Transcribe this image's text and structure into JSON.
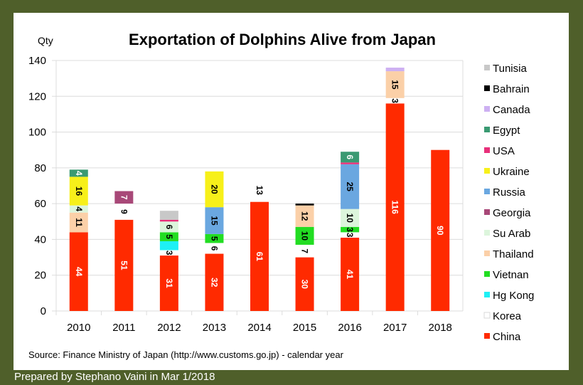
{
  "chart_data": {
    "type": "bar",
    "stacked": true,
    "title": "Exportation of Dolphins Alive from Japan",
    "xlabel": "",
    "ylabel": "Qty",
    "ylim": [
      0,
      140
    ],
    "yticks": [
      0,
      20,
      40,
      60,
      80,
      100,
      120,
      140
    ],
    "grid": true,
    "legend_position": "right",
    "categories": [
      "2010",
      "2011",
      "2012",
      "2013",
      "2014",
      "2015",
      "2016",
      "2017",
      "2018"
    ],
    "series": [
      {
        "name": "China",
        "color": "#ff2a00",
        "label_color": "#ffffff",
        "values": [
          44,
          51,
          31,
          32,
          61,
          30,
          41,
          116,
          90
        ],
        "labeled": [
          true,
          true,
          true,
          true,
          true,
          true,
          true,
          true,
          true
        ]
      },
      {
        "name": "Korea",
        "color": "#ffffff",
        "label_color": "#000000",
        "values": [
          0,
          9,
          3,
          6,
          13,
          7,
          3,
          3,
          0
        ],
        "labeled": [
          false,
          true,
          true,
          true,
          true,
          true,
          true,
          true,
          false
        ]
      },
      {
        "name": "Hg Kong",
        "color": "#1ef0f5",
        "label_color": "#000000",
        "values": [
          0,
          0,
          5,
          0,
          0,
          0,
          0,
          0,
          0
        ],
        "labeled": [
          false,
          false,
          false,
          false,
          false,
          false,
          false,
          false,
          false
        ]
      },
      {
        "name": "Vietnan",
        "color": "#22dd22",
        "label_color": "#000000",
        "values": [
          0,
          0,
          5,
          5,
          0,
          10,
          3,
          0,
          0
        ],
        "labeled": [
          false,
          false,
          true,
          true,
          false,
          true,
          true,
          false,
          false
        ]
      },
      {
        "name": "Thailand",
        "color": "#fbd0a8",
        "label_color": "#000000",
        "values": [
          11,
          0,
          0,
          0,
          0,
          12,
          0,
          15,
          0
        ],
        "labeled": [
          true,
          false,
          false,
          false,
          false,
          true,
          false,
          true,
          false
        ]
      },
      {
        "name": "Su Arab",
        "color": "#dcf5dc",
        "label_color": "#000000",
        "values": [
          4,
          0,
          6,
          0,
          0,
          0,
          10,
          0,
          0
        ],
        "labeled": [
          true,
          false,
          true,
          false,
          false,
          false,
          true,
          false,
          false
        ]
      },
      {
        "name": "Georgia",
        "color": "#a84878",
        "label_color": "#ffffff",
        "values": [
          0,
          7,
          0,
          0,
          0,
          0,
          0,
          0,
          0
        ],
        "labeled": [
          false,
          true,
          false,
          false,
          false,
          false,
          false,
          false,
          false
        ]
      },
      {
        "name": "Russia",
        "color": "#6aa7e0",
        "label_color": "#000000",
        "values": [
          0,
          0,
          0,
          15,
          0,
          0,
          25,
          0,
          0
        ],
        "labeled": [
          false,
          false,
          false,
          true,
          false,
          false,
          true,
          false,
          false
        ]
      },
      {
        "name": "Ukraine",
        "color": "#f7f01a",
        "label_color": "#000000",
        "values": [
          16,
          0,
          0,
          20,
          0,
          0,
          0,
          0,
          0
        ],
        "labeled": [
          true,
          false,
          false,
          true,
          false,
          false,
          false,
          false,
          false
        ]
      },
      {
        "name": "USA",
        "color": "#e8307a",
        "label_color": "#000000",
        "values": [
          0,
          0,
          1,
          0,
          0,
          0,
          1,
          0,
          0
        ],
        "labeled": [
          false,
          false,
          false,
          false,
          false,
          false,
          false,
          false,
          false
        ]
      },
      {
        "name": "Egypt",
        "color": "#3a9a72",
        "label_color": "#ffffff",
        "values": [
          4,
          0,
          0,
          0,
          0,
          0,
          6,
          0,
          0
        ],
        "labeled": [
          true,
          false,
          false,
          false,
          false,
          false,
          true,
          false,
          false
        ]
      },
      {
        "name": "Canada",
        "color": "#cdb0f2",
        "label_color": "#000000",
        "values": [
          0,
          0,
          0,
          0,
          0,
          0,
          0,
          2,
          0
        ],
        "labeled": [
          false,
          false,
          false,
          false,
          false,
          false,
          false,
          false,
          false
        ]
      },
      {
        "name": "Bahrain",
        "color": "#000000",
        "label_color": "#ffffff",
        "values": [
          0,
          0,
          0,
          0,
          0,
          1,
          0,
          0,
          0
        ],
        "labeled": [
          false,
          false,
          false,
          false,
          false,
          false,
          false,
          false,
          false
        ]
      },
      {
        "name": "Tunisia",
        "color": "#c8c8c8",
        "label_color": "#000000",
        "values": [
          0,
          0,
          5,
          0,
          0,
          0,
          0,
          0,
          0
        ],
        "labeled": [
          false,
          false,
          false,
          false,
          false,
          false,
          false,
          false,
          false
        ]
      }
    ],
    "legend_order": [
      "Tunisia",
      "Bahrain",
      "Canada",
      "Egypt",
      "USA",
      "Ukraine",
      "Russia",
      "Georgia",
      "Su Arab",
      "Thailand",
      "Vietnan",
      "Hg Kong",
      "Korea",
      "China"
    ],
    "source_note": "Source:  Finance Ministry of Japan (http://www.customs.go.jp) - calendar year"
  },
  "footer": {
    "credit": "Prepared by Stephano Vaini in Mar 1/2018"
  },
  "colors": {
    "frame": "#4f5f2a",
    "panel": "#ffffff",
    "gridline": "#dcdcdc"
  }
}
